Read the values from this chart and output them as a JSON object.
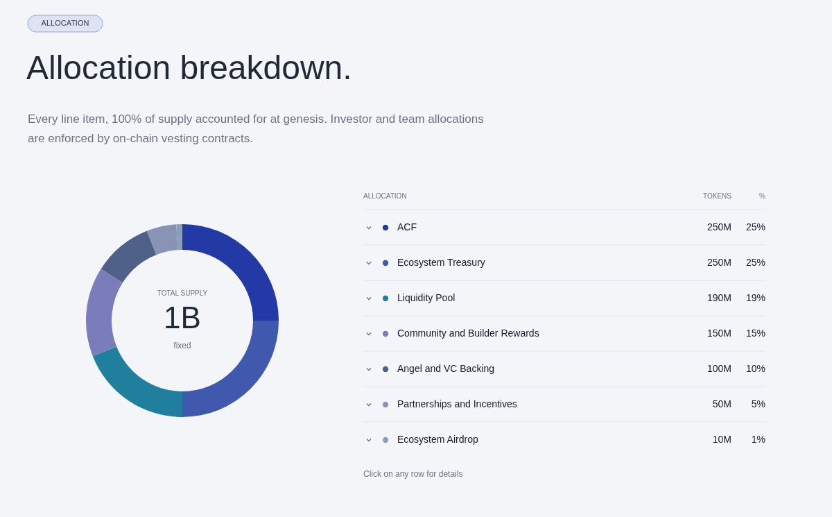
{
  "chart_data": {
    "type": "donut",
    "title": "Allocation breakdown.",
    "subtitle": "Every line item, 100% of supply accounted for at genesis. Investor and team allocations\nare enforced by on-chain vesting contracts.",
    "categories": [
      "ACF",
      "Ecosystem Treasury",
      "Liquidity Pool",
      "Community and Builder Rewards",
      "Angel and VC Backing",
      "Partnerships and Incentives",
      "Ecosystem Airdrop"
    ],
    "values": [
      25,
      25,
      19,
      15,
      10,
      5,
      1
    ],
    "colors": [
      "#2239a6",
      "#4059ad",
      "#1f7f9c",
      "#7b7cba",
      "#4f6089",
      "#8893b5",
      "#8aa0b8"
    ],
    "value_labels": [
      "25%",
      "25%",
      "19%",
      "15%",
      "10%",
      "5%",
      "1%"
    ],
    "legend": "right",
    "annotations": [
      "ALLOCATION",
      "ALLOCATION",
      "TOKENS",
      "%",
      "TOTAL SUPPLY",
      "1B",
      "fixed",
      "Click on any row for details",
      "250M",
      "250M",
      "190M",
      "150M",
      "100M",
      "50M",
      "10M"
    ]
  }
}
